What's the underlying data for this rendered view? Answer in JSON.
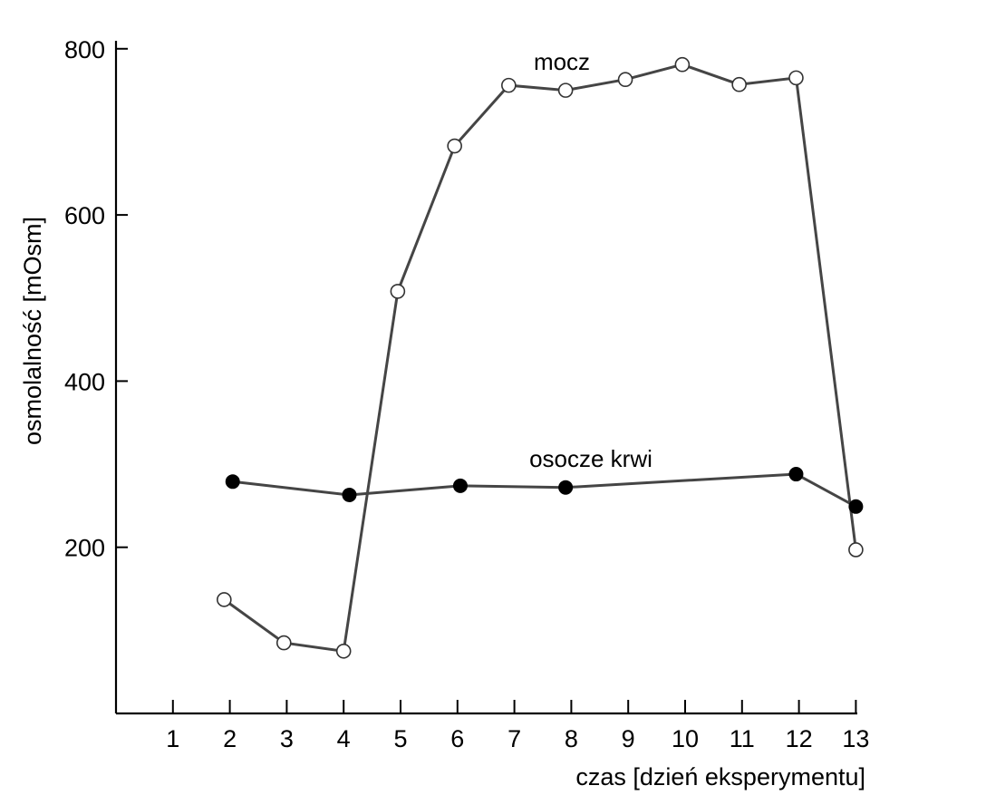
{
  "chart_data": {
    "type": "line",
    "xlabel": "czas [dzień eksperymentu]",
    "ylabel": "osmolalność [mOsm]",
    "x_ticks": [
      "1",
      "2",
      "3",
      "4",
      "5",
      "6",
      "7",
      "8",
      "9",
      "10",
      "11",
      "12",
      "13"
    ],
    "y_ticks": [
      "200",
      "400",
      "600",
      "800"
    ],
    "xlim": [
      0,
      13
    ],
    "ylim": [
      0,
      800
    ],
    "grid": false,
    "series": [
      {
        "name": "mocz",
        "marker": "open-circle",
        "color": "#454545",
        "points": [
          {
            "x": 1.9,
            "y": 137
          },
          {
            "x": 2.95,
            "y": 85
          },
          {
            "x": 4.0,
            "y": 75
          },
          {
            "x": 4.95,
            "y": 508
          },
          {
            "x": 5.95,
            "y": 683
          },
          {
            "x": 6.9,
            "y": 756
          },
          {
            "x": 7.9,
            "y": 750
          },
          {
            "x": 8.95,
            "y": 763
          },
          {
            "x": 9.95,
            "y": 781
          },
          {
            "x": 10.95,
            "y": 757
          },
          {
            "x": 11.95,
            "y": 765
          },
          {
            "x": 13.0,
            "y": 197
          }
        ]
      },
      {
        "name": "osocze krwi",
        "marker": "filled-circle",
        "color": "#454545",
        "points": [
          {
            "x": 2.05,
            "y": 279
          },
          {
            "x": 4.1,
            "y": 263
          },
          {
            "x": 6.05,
            "y": 274
          },
          {
            "x": 7.9,
            "y": 272
          },
          {
            "x": 11.95,
            "y": 288
          },
          {
            "x": 13.0,
            "y": 249
          }
        ]
      }
    ]
  }
}
